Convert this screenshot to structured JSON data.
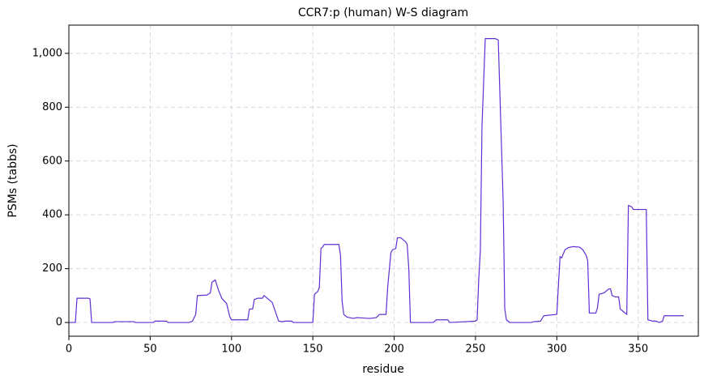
{
  "chart_data": {
    "type": "line",
    "title": "CCR7:p (human) W-S diagram",
    "x_label": "residue",
    "y_label": "PSMs (tabbs)",
    "color": "#5f2fd4",
    "grid": true,
    "xlim": [
      0,
      387
    ],
    "ylim": [
      -51,
      1105
    ],
    "xticks": [
      0,
      50,
      100,
      150,
      200,
      250,
      300,
      350
    ],
    "yticks": [
      0,
      200,
      400,
      600,
      800,
      {
        "value": 1000,
        "label": "1,000"
      }
    ],
    "x": [
      0,
      4,
      5,
      12,
      13,
      14,
      27,
      28,
      40,
      41,
      52,
      53,
      60,
      61,
      74,
      76,
      78,
      79,
      85,
      87,
      88,
      90,
      92,
      94,
      97,
      99,
      100,
      110,
      111,
      113,
      114,
      116,
      119,
      120,
      122,
      125,
      127,
      129,
      131,
      133,
      137,
      138,
      150,
      151,
      153,
      154,
      155,
      156,
      157,
      166,
      167,
      168,
      169,
      171,
      175,
      177,
      185,
      189,
      191,
      195,
      196,
      198,
      199,
      201,
      202,
      204,
      207,
      208,
      209,
      210,
      224,
      226,
      233,
      234,
      244,
      250,
      251,
      252,
      253,
      254,
      256,
      262,
      264,
      267,
      268,
      269,
      271,
      284,
      286,
      290,
      292,
      300,
      301,
      302,
      303,
      305,
      307,
      310,
      314,
      316,
      318,
      319,
      320,
      324,
      325,
      326,
      329,
      332,
      333,
      334,
      336,
      338,
      339,
      341,
      343,
      344,
      346,
      347,
      355,
      356,
      359,
      361,
      363,
      365,
      366,
      378
    ],
    "values": [
      0,
      0,
      90,
      90,
      88,
      0,
      0,
      3,
      3,
      0,
      0,
      5,
      5,
      0,
      0,
      5,
      30,
      100,
      102,
      110,
      150,
      158,
      120,
      90,
      70,
      20,
      10,
      10,
      50,
      50,
      85,
      90,
      90,
      100,
      90,
      75,
      40,
      5,
      3,
      5,
      5,
      0,
      0,
      105,
      115,
      130,
      275,
      280,
      290,
      290,
      250,
      80,
      30,
      20,
      15,
      18,
      15,
      18,
      30,
      30,
      130,
      260,
      270,
      275,
      315,
      315,
      300,
      290,
      200,
      0,
      0,
      10,
      10,
      0,
      3,
      5,
      10,
      160,
      270,
      730,
      1055,
      1055,
      1050,
      450,
      50,
      10,
      0,
      0,
      3,
      5,
      25,
      30,
      140,
      245,
      240,
      270,
      278,
      282,
      280,
      270,
      250,
      230,
      35,
      35,
      55,
      105,
      110,
      125,
      125,
      100,
      95,
      95,
      50,
      40,
      30,
      435,
      430,
      420,
      420,
      10,
      5,
      5,
      0,
      5,
      25,
      25
    ]
  }
}
